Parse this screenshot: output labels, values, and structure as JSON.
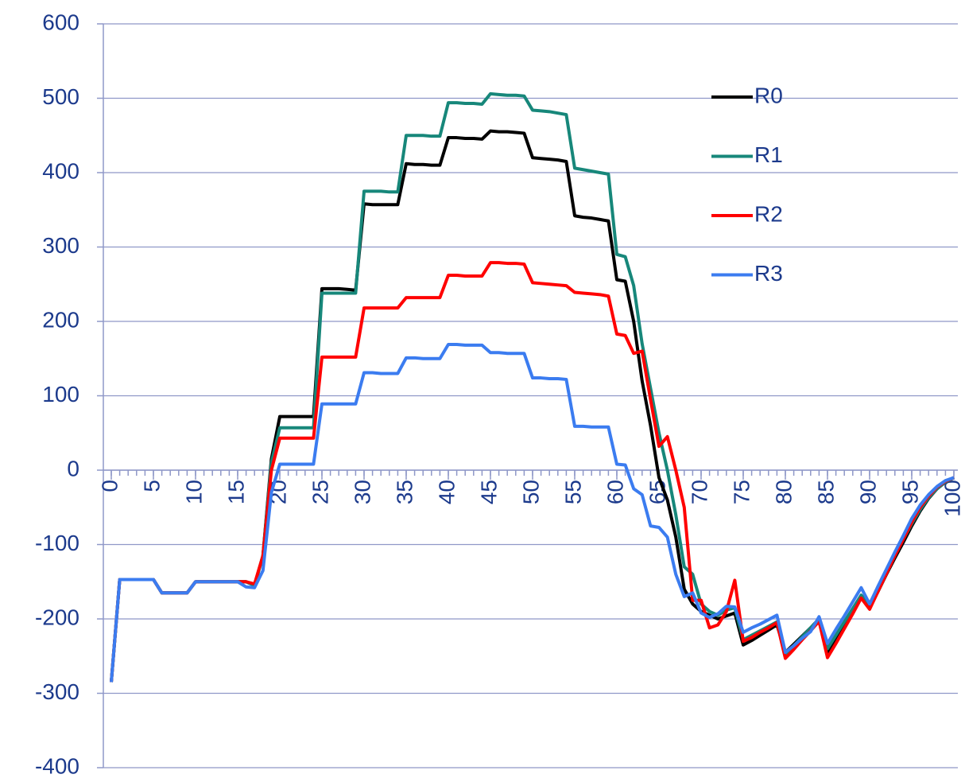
{
  "chart_data": {
    "type": "line",
    "x": [
      0,
      1,
      2,
      3,
      4,
      5,
      6,
      7,
      8,
      9,
      10,
      11,
      12,
      13,
      14,
      15,
      16,
      17,
      18,
      19,
      20,
      21,
      22,
      23,
      24,
      25,
      26,
      27,
      28,
      29,
      30,
      31,
      32,
      33,
      34,
      35,
      36,
      37,
      38,
      39,
      40,
      41,
      42,
      43,
      44,
      45,
      46,
      47,
      48,
      49,
      50,
      51,
      52,
      53,
      54,
      55,
      56,
      57,
      58,
      59,
      60,
      61,
      62,
      63,
      64,
      65,
      66,
      67,
      68,
      69,
      70,
      71,
      72,
      73,
      74,
      75,
      76,
      77,
      78,
      79,
      80,
      81,
      82,
      83,
      84,
      85,
      86,
      87,
      88,
      89,
      90,
      91,
      92,
      93,
      94,
      95,
      96,
      97,
      98,
      99,
      100
    ],
    "series": [
      {
        "name": "R0",
        "color": "#000000",
        "values": [
          -285,
          -147,
          -147,
          -147,
          -147,
          -147,
          -165,
          -165,
          -165,
          -165,
          -150,
          -150,
          -150,
          -150,
          -150,
          -150,
          -150,
          -155,
          -115,
          15,
          72,
          72,
          72,
          72,
          72,
          244,
          244,
          244,
          243,
          242,
          358,
          357,
          357,
          357,
          357,
          412,
          411,
          411,
          410,
          410,
          447,
          447,
          446,
          446,
          445,
          456,
          455,
          455,
          454,
          453,
          420,
          419,
          418,
          417,
          415,
          342,
          340,
          339,
          337,
          335,
          256,
          254,
          200,
          120,
          60,
          -10,
          -40,
          -90,
          -160,
          -180,
          -190,
          -195,
          -200,
          -196,
          -192,
          -235,
          -229,
          -222,
          -215,
          -208,
          -245,
          -234,
          -223,
          -212,
          -200,
          -245,
          -227,
          -209,
          -190,
          -172,
          -185,
          -163,
          -140,
          -118,
          -97,
          -75,
          -55,
          -38,
          -25,
          -16,
          -10
        ]
      },
      {
        "name": "R1",
        "color": "#17877a",
        "values": [
          -285,
          -147,
          -147,
          -147,
          -147,
          -147,
          -165,
          -165,
          -165,
          -165,
          -150,
          -150,
          -150,
          -150,
          -150,
          -150,
          -150,
          -155,
          -115,
          10,
          57,
          57,
          57,
          57,
          57,
          238,
          238,
          238,
          238,
          238,
          375,
          375,
          375,
          374,
          374,
          450,
          450,
          450,
          449,
          449,
          494,
          494,
          493,
          493,
          492,
          506,
          505,
          504,
          504,
          503,
          484,
          483,
          482,
          480,
          478,
          406,
          404,
          402,
          400,
          398,
          290,
          287,
          248,
          170,
          110,
          50,
          0,
          -60,
          -130,
          -140,
          -180,
          -190,
          -195,
          -188,
          -185,
          -228,
          -222,
          -216,
          -210,
          -204,
          -247,
          -236,
          -224,
          -212,
          -200,
          -240,
          -222,
          -204,
          -186,
          -168,
          -180,
          -158,
          -136,
          -114,
          -93,
          -72,
          -53,
          -37,
          -25,
          -16,
          -10
        ]
      },
      {
        "name": "R2",
        "color": "#ff0000",
        "values": [
          -285,
          -147,
          -147,
          -147,
          -147,
          -147,
          -165,
          -165,
          -165,
          -165,
          -150,
          -150,
          -150,
          -150,
          -150,
          -150,
          -150,
          -153,
          -115,
          0,
          43,
          43,
          43,
          43,
          43,
          152,
          152,
          152,
          152,
          152,
          218,
          218,
          218,
          218,
          218,
          232,
          232,
          232,
          232,
          232,
          262,
          262,
          261,
          261,
          261,
          279,
          279,
          278,
          278,
          277,
          252,
          251,
          250,
          249,
          248,
          239,
          238,
          237,
          236,
          234,
          183,
          181,
          157,
          160,
          95,
          32,
          45,
          0,
          -50,
          -175,
          -175,
          -212,
          -208,
          -190,
          -148,
          -230,
          -225,
          -218,
          -212,
          -205,
          -253,
          -241,
          -228,
          -216,
          -203,
          -252,
          -233,
          -213,
          -193,
          -172,
          -187,
          -163,
          -139,
          -115,
          -93,
          -70,
          -50,
          -35,
          -23,
          -15,
          -10
        ]
      },
      {
        "name": "R3",
        "color": "#3b7cf0",
        "values": [
          -285,
          -147,
          -147,
          -147,
          -147,
          -147,
          -165,
          -165,
          -165,
          -165,
          -150,
          -150,
          -150,
          -150,
          -150,
          -150,
          -157,
          -158,
          -135,
          -30,
          8,
          8,
          8,
          8,
          8,
          89,
          89,
          89,
          89,
          89,
          131,
          131,
          130,
          130,
          130,
          151,
          151,
          150,
          150,
          150,
          169,
          169,
          168,
          168,
          168,
          158,
          158,
          157,
          157,
          157,
          124,
          124,
          123,
          123,
          122,
          59,
          59,
          58,
          58,
          58,
          8,
          7,
          -25,
          -33,
          -75,
          -77,
          -90,
          -140,
          -170,
          -165,
          -192,
          -198,
          -193,
          -183,
          -184,
          -218,
          -212,
          -207,
          -201,
          -195,
          -245,
          -236,
          -226,
          -217,
          -197,
          -233,
          -214,
          -196,
          -177,
          -158,
          -180,
          -156,
          -133,
          -110,
          -88,
          -65,
          -47,
          -33,
          -22,
          -14,
          -10
        ]
      }
    ],
    "xlim": [
      0,
      100
    ],
    "xticks": [
      0,
      5,
      10,
      15,
      20,
      25,
      30,
      35,
      40,
      45,
      50,
      55,
      60,
      65,
      70,
      75,
      80,
      85,
      90,
      95,
      100
    ],
    "ylim": [
      -400,
      600
    ],
    "yticks": [
      -400,
      -300,
      -200,
      -100,
      0,
      100,
      200,
      300,
      400,
      500,
      600
    ],
    "grid": true,
    "legend": "upper right"
  }
}
